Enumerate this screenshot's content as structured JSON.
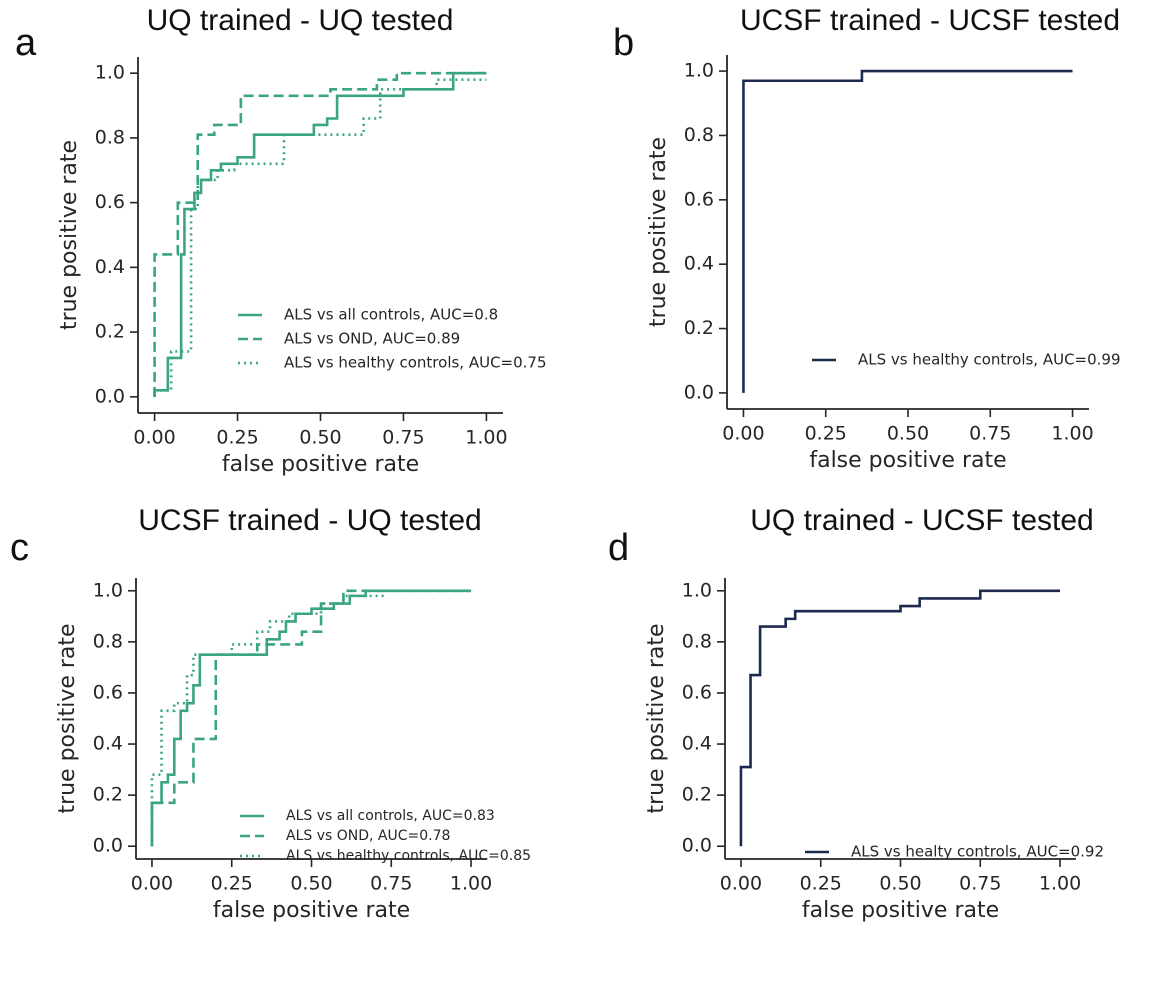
{
  "chart_data": [
    {
      "type": "line",
      "panel_label": "a",
      "title": "UQ trained - UQ tested",
      "xlabel": "false positive rate",
      "ylabel": "true positive rate",
      "xlim": [
        -0.05,
        1.05
      ],
      "ylim": [
        -0.05,
        1.05
      ],
      "xticks": [
        {
          "value": 0,
          "label": "0.00"
        },
        0.25,
        {
          "value": 0.5,
          "label": "0.50"
        },
        0.75,
        {
          "value": 1,
          "label": "1.00"
        }
      ],
      "yticks": [
        {
          "value": 0,
          "label": "0.0"
        },
        0.2,
        0.4,
        0.6,
        0.8,
        {
          "value": 1,
          "label": "1.0"
        }
      ],
      "legend": "lower right",
      "series": [
        {
          "name": "ALS vs all controls, AUC=0.8",
          "color": "#3aa57f",
          "linestyle": "solid",
          "x": [
            0,
            0,
            0.04,
            0.04,
            0.08,
            0.08,
            0.09,
            0.09,
            0.12,
            0.12,
            0.14,
            0.14,
            0.17,
            0.17,
            0.2,
            0.2,
            0.25,
            0.25,
            0.3,
            0.3,
            0.48,
            0.48,
            0.52,
            0.52,
            0.55,
            0.55,
            0.75,
            0.75,
            0.9,
            0.9,
            1
          ],
          "values": [
            0,
            0.02,
            0.02,
            0.12,
            0.12,
            0.44,
            0.44,
            0.58,
            0.58,
            0.63,
            0.63,
            0.67,
            0.67,
            0.7,
            0.7,
            0.72,
            0.72,
            0.74,
            0.74,
            0.81,
            0.81,
            0.84,
            0.84,
            0.86,
            0.86,
            0.93,
            0.93,
            0.95,
            0.95,
            1,
            1
          ]
        },
        {
          "name": "ALS vs OND, AUC=0.89",
          "color": "#3aa57f",
          "linestyle": "dashed",
          "x": [
            0,
            0,
            0.07,
            0.07,
            0.13,
            0.13,
            0.18,
            0.18,
            0.26,
            0.26,
            0.53,
            0.53,
            0.67,
            0.67,
            0.73,
            0.73,
            1
          ],
          "values": [
            0,
            0.44,
            0.44,
            0.6,
            0.6,
            0.81,
            0.81,
            0.84,
            0.84,
            0.93,
            0.93,
            0.95,
            0.95,
            0.98,
            0.98,
            1,
            1
          ]
        },
        {
          "name": "ALS vs healthy controls, AUC=0.75",
          "color": "#3aa57f",
          "linestyle": "dotted",
          "x": [
            0,
            0,
            0.05,
            0.05,
            0.11,
            0.11,
            0.13,
            0.13,
            0.19,
            0.19,
            0.24,
            0.24,
            0.39,
            0.39,
            0.63,
            0.63,
            0.68,
            0.68,
            0.85,
            0.85,
            1
          ],
          "values": [
            0,
            0.02,
            0.02,
            0.14,
            0.14,
            0.58,
            0.58,
            0.67,
            0.67,
            0.7,
            0.7,
            0.72,
            0.72,
            0.81,
            0.81,
            0.86,
            0.86,
            0.95,
            0.95,
            0.98,
            0.98
          ]
        }
      ]
    },
    {
      "type": "line",
      "panel_label": "b",
      "title": "UCSF trained - UCSF tested",
      "xlabel": "false positive rate",
      "ylabel": "true positive rate",
      "xlim": [
        -0.05,
        1.05
      ],
      "ylim": [
        -0.05,
        1.05
      ],
      "xticks": [
        {
          "value": 0,
          "label": "0.00"
        },
        0.25,
        {
          "value": 0.5,
          "label": "0.50"
        },
        0.75,
        {
          "value": 1,
          "label": "1.00"
        }
      ],
      "yticks": [
        {
          "value": 0,
          "label": "0.0"
        },
        0.2,
        0.4,
        0.6,
        0.8,
        {
          "value": 1,
          "label": "1.0"
        }
      ],
      "legend": "lower right",
      "series": [
        {
          "name": "ALS vs healthy controls, AUC=0.99",
          "color": "#1b2a4e",
          "linestyle": "solid",
          "x": [
            0,
            0,
            0.36,
            0.36,
            1
          ],
          "values": [
            0,
            0.97,
            0.97,
            1,
            1
          ]
        }
      ]
    },
    {
      "type": "line",
      "panel_label": "c",
      "title": "UCSF trained - UQ tested",
      "xlabel": "false positive rate",
      "ylabel": "true positive rate",
      "xlim": [
        -0.05,
        1.05
      ],
      "ylim": [
        -0.05,
        1.05
      ],
      "xticks": [
        {
          "value": 0,
          "label": "0.00"
        },
        0.25,
        {
          "value": 0.5,
          "label": "0.50"
        },
        0.75,
        {
          "value": 1,
          "label": "1.00"
        }
      ],
      "yticks": [
        {
          "value": 0,
          "label": "0.0"
        },
        0.2,
        0.4,
        0.6,
        0.8,
        {
          "value": 1,
          "label": "1.0"
        }
      ],
      "legend": "lower right",
      "series": [
        {
          "name": "ALS vs all controls, AUC=0.83",
          "color": "#3aa57f",
          "linestyle": "solid",
          "x": [
            0,
            0,
            0.03,
            0.03,
            0.05,
            0.05,
            0.07,
            0.07,
            0.09,
            0.09,
            0.11,
            0.11,
            0.13,
            0.13,
            0.15,
            0.15,
            0.36,
            0.36,
            0.4,
            0.4,
            0.42,
            0.42,
            0.45,
            0.45,
            0.5,
            0.5,
            0.57,
            0.57,
            0.62,
            0.62,
            0.67,
            0.67,
            1
          ],
          "values": [
            0,
            0.17,
            0.17,
            0.25,
            0.25,
            0.28,
            0.28,
            0.42,
            0.42,
            0.53,
            0.53,
            0.56,
            0.56,
            0.63,
            0.63,
            0.75,
            0.75,
            0.81,
            0.81,
            0.84,
            0.84,
            0.88,
            0.88,
            0.91,
            0.91,
            0.93,
            0.93,
            0.95,
            0.95,
            0.98,
            0.98,
            1,
            1
          ]
        },
        {
          "name": "ALS vs OND, AUC=0.78",
          "color": "#3aa57f",
          "linestyle": "dashed",
          "x": [
            0,
            0,
            0.07,
            0.07,
            0.13,
            0.13,
            0.2,
            0.2,
            0.33,
            0.33,
            0.47,
            0.47,
            0.53,
            0.53,
            0.6,
            0.6,
            1
          ],
          "values": [
            0,
            0.17,
            0.17,
            0.25,
            0.25,
            0.42,
            0.42,
            0.75,
            0.75,
            0.79,
            0.79,
            0.84,
            0.84,
            0.95,
            0.95,
            1,
            1
          ]
        },
        {
          "name": "ALS vs healthy controls, AUC=0.85",
          "color": "#3aa57f",
          "linestyle": "dotted",
          "x": [
            0,
            0,
            0.03,
            0.03,
            0.07,
            0.07,
            0.11,
            0.11,
            0.13,
            0.13,
            0.25,
            0.25,
            0.33,
            0.33,
            0.37,
            0.37,
            0.43,
            0.43,
            0.53,
            0.53,
            0.6,
            0.6,
            0.73
          ],
          "values": [
            0,
            0.28,
            0.28,
            0.53,
            0.53,
            0.56,
            0.56,
            0.67,
            0.67,
            0.75,
            0.75,
            0.79,
            0.79,
            0.84,
            0.84,
            0.88,
            0.88,
            0.91,
            0.91,
            0.95,
            0.95,
            0.98,
            0.98
          ]
        }
      ]
    },
    {
      "type": "line",
      "panel_label": "d",
      "title": "UQ trained - UCSF tested",
      "xlabel": "false positive rate",
      "ylabel": "true positive rate",
      "xlim": [
        -0.05,
        1.05
      ],
      "ylim": [
        -0.05,
        1.05
      ],
      "xticks": [
        {
          "value": 0,
          "label": "0.00"
        },
        0.25,
        {
          "value": 0.5,
          "label": "0.50"
        },
        0.75,
        {
          "value": 1,
          "label": "1.00"
        }
      ],
      "yticks": [
        {
          "value": 0,
          "label": "0.0"
        },
        0.2,
        0.4,
        0.6,
        0.8,
        {
          "value": 1,
          "label": "1.0"
        }
      ],
      "legend": "lower right",
      "series": [
        {
          "name": "ALS vs healty controls, AUC=0.92",
          "color": "#1b2a4e",
          "linestyle": "solid",
          "x": [
            0,
            0,
            0.03,
            0.03,
            0.06,
            0.06,
            0.14,
            0.14,
            0.17,
            0.17,
            0.5,
            0.5,
            0.56,
            0.56,
            0.75,
            0.75,
            1
          ],
          "values": [
            0,
            0.31,
            0.31,
            0.67,
            0.67,
            0.86,
            0.86,
            0.89,
            0.89,
            0.92,
            0.92,
            0.94,
            0.94,
            0.97,
            0.97,
            1,
            1
          ]
        }
      ]
    }
  ]
}
